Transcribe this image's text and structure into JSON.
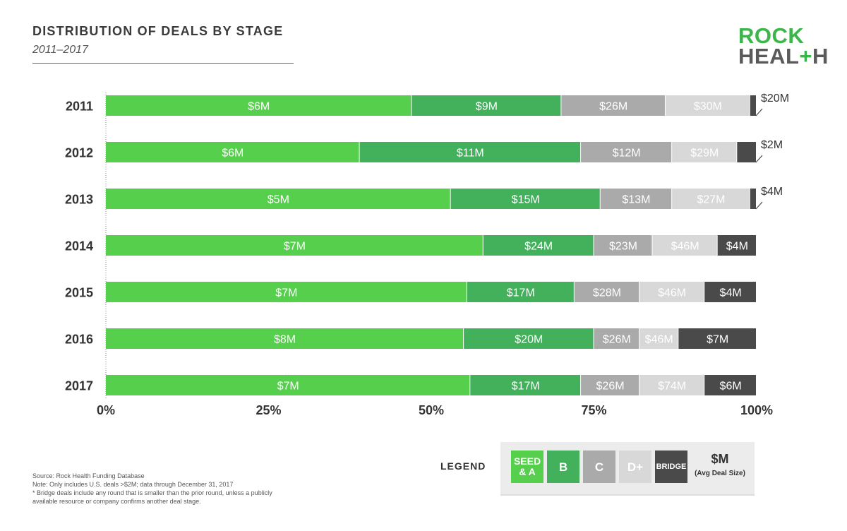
{
  "header": {
    "title": "DISTRIBUTION OF DEALS BY STAGE",
    "subtitle": "2011–2017"
  },
  "logo": {
    "line1": "ROCK",
    "line2_a": "HEAL",
    "line2_plus": "+",
    "line2_b": "H"
  },
  "colors": {
    "seed_a": "#56cf4d",
    "b": "#43b05c",
    "c": "#aaaaaa",
    "d_plus": "#d8d8d8",
    "bridge": "#4a4a4a"
  },
  "chart_data": {
    "type": "bar",
    "orientation": "horizontal",
    "stacked": true,
    "normalized": true,
    "categories": [
      "2011",
      "2012",
      "2013",
      "2014",
      "2015",
      "2016",
      "2017"
    ],
    "xlim": [
      0,
      100
    ],
    "x_ticks": [
      "0%",
      "25%",
      "50%",
      "75%",
      "100%"
    ],
    "series": [
      {
        "name": "SEED & A",
        "key": "seed_a",
        "values": [
          47,
          39,
          53,
          58,
          55.5,
          55,
          56
        ],
        "labels": [
          "$6M",
          "$6M",
          "$5M",
          "$7M",
          "$7M",
          "$8M",
          "$7M"
        ]
      },
      {
        "name": "B",
        "key": "b",
        "values": [
          23,
          34,
          23,
          17,
          16.5,
          20,
          17
        ],
        "labels": [
          "$9M",
          "$11M",
          "$15M",
          "$24M",
          "$17M",
          "$20M",
          "$17M"
        ]
      },
      {
        "name": "C",
        "key": "c",
        "values": [
          16,
          14,
          11,
          9,
          10,
          7,
          9
        ],
        "labels": [
          "$26M",
          "$12M",
          "$13M",
          "$23M",
          "$28M",
          "$26M",
          "$26M"
        ]
      },
      {
        "name": "D+",
        "key": "d_plus",
        "values": [
          13,
          10,
          12,
          10,
          10,
          6,
          10
        ],
        "labels": [
          "$30M",
          "$29M",
          "$27M",
          "$46M",
          "$46M",
          "$46M",
          "$74M"
        ]
      },
      {
        "name": "BRIDGE",
        "key": "bridge",
        "values": [
          1,
          3,
          1,
          6,
          8,
          12,
          8
        ],
        "labels": [
          "$20M",
          "$2M",
          "$4M",
          "$4M",
          "$4M",
          "$7M",
          "$6M"
        ],
        "label_outside": [
          true,
          true,
          true,
          false,
          false,
          false,
          false
        ]
      }
    ]
  },
  "legend": {
    "label": "LEGEND",
    "items": [
      {
        "label": "SEED\n& A",
        "key": "seed_a"
      },
      {
        "label": "B",
        "key": "b"
      },
      {
        "label": "C",
        "key": "c"
      },
      {
        "label": "D+",
        "key": "d_plus"
      },
      {
        "label": "BRIDGE",
        "key": "bridge"
      }
    ],
    "unit": "$M",
    "unit_note": "(Avg Deal Size)"
  },
  "footer": {
    "source": "Source: Rock Health Funding Database",
    "note": "Note: Only includes U.S. deals >$2M; data through December 31, 2017",
    "bridge_note": "* Bridge deals include any round that is smaller than the prior round, unless a publicly available resource or company confirms another deal stage."
  }
}
